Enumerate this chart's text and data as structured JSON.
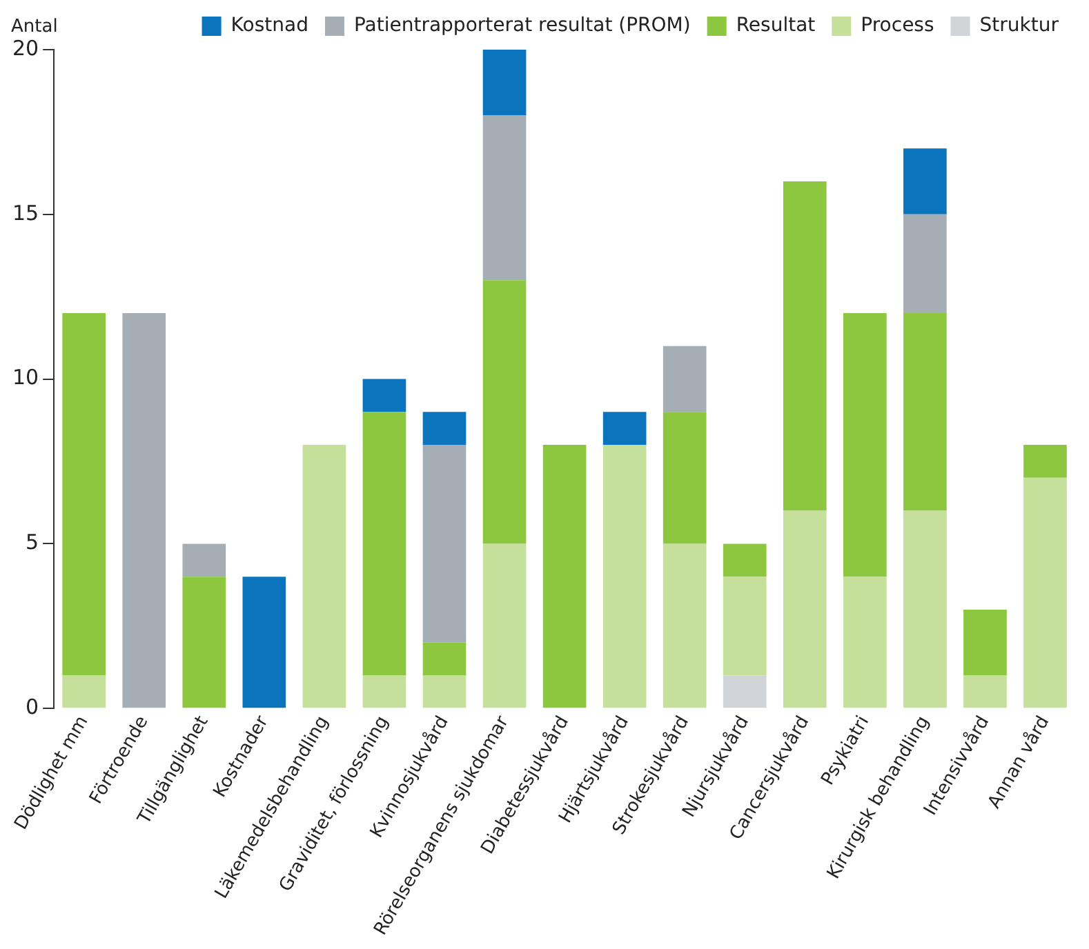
{
  "chart_data": {
    "type": "bar",
    "stacked": true,
    "ylabel": "Antal",
    "legend": "top",
    "grid": false,
    "categories": [
      "Dödlighet mm",
      "Förtroende",
      "Tillgänglighet",
      "Kostnader",
      "Läkemedelsbehandling",
      "Graviditet, förlossning",
      "Kvinnosjukvård",
      "Rörelseorganens sjukdomar",
      "Diabetessjukvård",
      "Hjärtsjukvård",
      "Strokesjukvård",
      "Njursjukvård",
      "Cancersjukvård",
      "Psykiatri",
      "Kirurgisk behandling",
      "Intensivvård",
      "Annan vård"
    ],
    "ylim": [
      0,
      20
    ],
    "yticks": [
      0,
      5,
      10,
      15,
      20
    ],
    "series": [
      {
        "name": "Struktur",
        "color": "#d1d5da",
        "values": [
          null,
          null,
          null,
          null,
          null,
          null,
          null,
          null,
          null,
          null,
          null,
          1,
          null,
          null,
          null,
          null,
          null
        ]
      },
      {
        "name": "Process",
        "color": "#c5e09b",
        "values": [
          1,
          null,
          null,
          null,
          8,
          1,
          1,
          5,
          null,
          8,
          5,
          3,
          6,
          4,
          6,
          1,
          7
        ]
      },
      {
        "name": "Resultat",
        "color": "#8dc63f",
        "values": [
          11,
          null,
          4,
          null,
          null,
          8,
          1,
          8,
          8,
          null,
          4,
          1,
          10,
          8,
          6,
          2,
          1
        ]
      },
      {
        "name": "Patientrapporterat resultat (PROM)",
        "color": "#a5adb5",
        "values": [
          null,
          12,
          1,
          null,
          null,
          null,
          6,
          5,
          null,
          null,
          2,
          null,
          null,
          null,
          3,
          null,
          null
        ]
      },
      {
        "name": "Kostnad",
        "color": "#0a75bd",
        "values": [
          null,
          null,
          null,
          4,
          null,
          1,
          1,
          2,
          null,
          1,
          null,
          null,
          null,
          null,
          2,
          null,
          null
        ]
      }
    ]
  }
}
